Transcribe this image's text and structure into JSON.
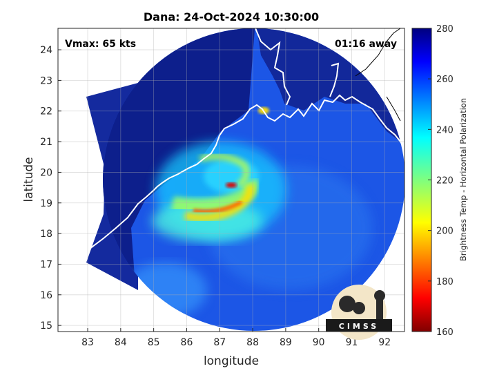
{
  "chart_data": {
    "type": "heatmap",
    "title": "Dana: 24-Oct-2024 10:30:00",
    "annotations": {
      "top_left": "Vmax: 65 kts",
      "top_right": "01:16 away"
    },
    "xlabel": "longitude",
    "ylabel": "latitude",
    "xlim": [
      82.1,
      92.6
    ],
    "ylim": [
      14.8,
      24.7
    ],
    "xticks": [
      83,
      84,
      85,
      86,
      87,
      88,
      89,
      90,
      91,
      92
    ],
    "yticks": [
      15,
      16,
      17,
      18,
      19,
      20,
      21,
      22,
      23,
      24
    ],
    "grid": true,
    "colorbar": {
      "label": "Brightness Temp - Horizontal Polarization",
      "range": [
        160,
        280
      ],
      "ticks": [
        160,
        180,
        200,
        220,
        240,
        260,
        280
      ],
      "colormap": "jet"
    },
    "storm_center": {
      "lon": 87.3,
      "lat": 19.6
    },
    "swath": {
      "center_lon": 87.9,
      "center_lat": 19.3,
      "radius_deg": 4.7
    },
    "logo": "CIMSS"
  },
  "colors": {
    "land": "#0d1f8c",
    "coastline": "#ffffff",
    "background_ocean": "#1c56e6"
  }
}
